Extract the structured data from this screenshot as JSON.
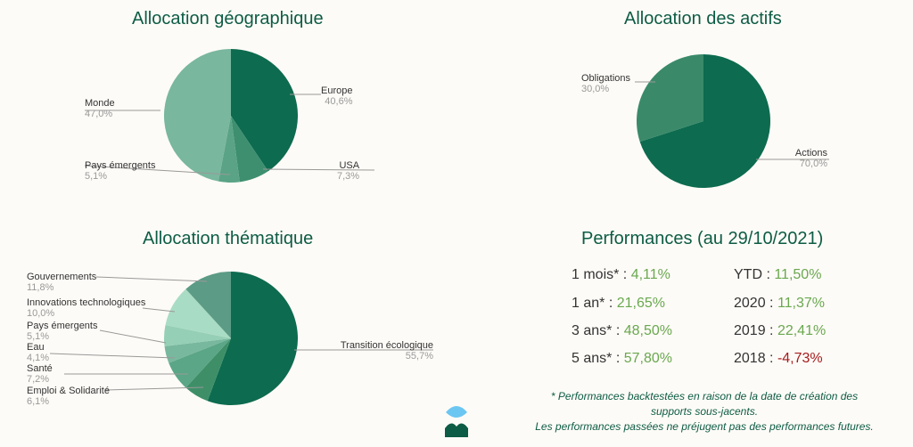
{
  "chart_data": [
    {
      "type": "pie",
      "title": "Allocation géographique",
      "categories": [
        "Europe",
        "USA",
        "Pays émergents",
        "Monde"
      ],
      "values": [
        40.6,
        7.3,
        5.1,
        47.0
      ],
      "labels": [
        "40,6%",
        "7,3%",
        "5,1%",
        "47,0%"
      ],
      "colors": [
        "#0d6b4f",
        "#3e8f70",
        "#5aa386",
        "#79b79e"
      ]
    },
    {
      "type": "pie",
      "title": "Allocation des actifs",
      "categories": [
        "Actions",
        "Obligations"
      ],
      "values": [
        70.0,
        30.0
      ],
      "labels": [
        "70,0%",
        "30,0%"
      ],
      "colors": [
        "#0d6b4f",
        "#3a8a6a"
      ]
    },
    {
      "type": "pie",
      "title": "Allocation thématique",
      "categories": [
        "Transition écologique",
        "Emploi & Solidarité",
        "Santé",
        "Eau",
        "Pays émergents",
        "Innovations technologiques",
        "Gouvernements"
      ],
      "values": [
        55.7,
        6.1,
        7.2,
        4.1,
        5.1,
        10.0,
        11.8
      ],
      "labels": [
        "55,7%",
        "6,1%",
        "7,2%",
        "4,1%",
        "5,1%",
        "10,0%",
        "11,8%"
      ],
      "colors": [
        "#0d6b4f",
        "#3e8f68",
        "#5aa687",
        "#78b89e",
        "#95cfb5",
        "#a9dcc4",
        "#5c9b86"
      ]
    }
  ],
  "performance": {
    "title": "Performances (au 29/10/2021)",
    "left": [
      {
        "label": "1 mois* : ",
        "value": "4,11%",
        "neg": false
      },
      {
        "label": "1 an* : ",
        "value": "21,65%",
        "neg": false
      },
      {
        "label": "3 ans* : ",
        "value": "48,50%",
        "neg": false
      },
      {
        "label": "5 ans* : ",
        "value": "57,80%",
        "neg": false
      }
    ],
    "right": [
      {
        "label": "YTD : ",
        "value": "11,50%",
        "neg": false
      },
      {
        "label": "2020 : ",
        "value": "11,37%",
        "neg": false
      },
      {
        "label": "2019 : ",
        "value": "22,41%",
        "neg": false
      },
      {
        "label": "2018 : ",
        "value": "-4,73%",
        "neg": true
      }
    ],
    "note_line1": "* Performances backtestées en raison de la date de création des",
    "note_line2": "supports sous-jacents.",
    "note_line3": "Les performances passées ne préjugent pas des performances futures."
  }
}
